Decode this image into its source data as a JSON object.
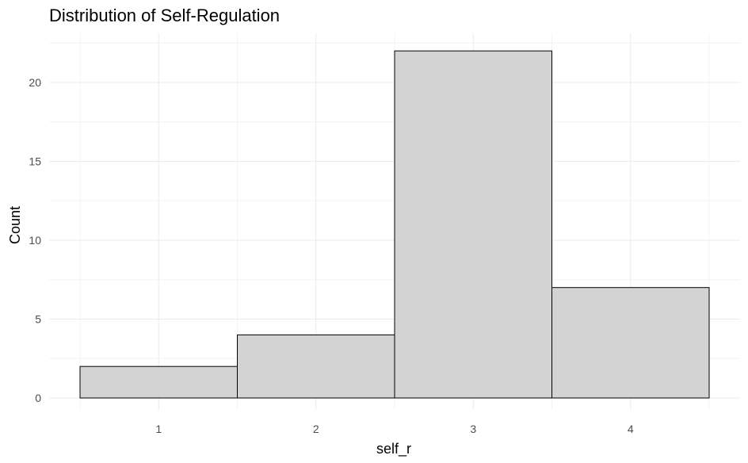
{
  "chart_data": {
    "type": "bar",
    "title": "Distribution of Self-Regulation",
    "xlabel": "self_r",
    "ylabel": "Count",
    "categories": [
      "1",
      "2",
      "3",
      "4"
    ],
    "values": [
      2,
      4,
      22,
      7
    ],
    "xlim": [
      0.5,
      4.5
    ],
    "ylim": [
      0,
      22
    ],
    "y_ticks": [
      "0",
      "5",
      "10",
      "15",
      "20"
    ],
    "x_ticks": [
      "1",
      "2",
      "3",
      "4"
    ],
    "grid": true,
    "colors": {
      "fill": "#d3d3d3",
      "outline": "#000000",
      "grid": "#ebebeb"
    }
  }
}
